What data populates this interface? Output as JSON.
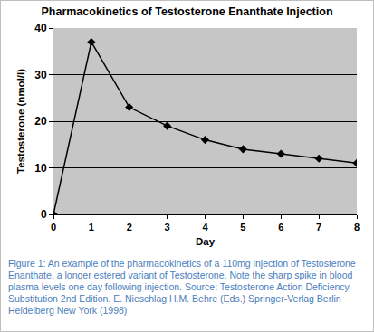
{
  "chart_data": {
    "type": "line",
    "title": "Pharmacokinetics of Testosterone Enanthate Injection",
    "x_label": "Day",
    "y_label": "Testosterone (nmol/l)",
    "x": [
      0,
      1,
      2,
      3,
      4,
      5,
      6,
      7,
      8
    ],
    "values": [
      0,
      37,
      23,
      19,
      16,
      14,
      13,
      12,
      11
    ],
    "color": "#000000",
    "marker": "diamond",
    "line_style": "solid",
    "xlim": [
      0,
      8
    ],
    "xticks": [
      0,
      1,
      2,
      3,
      4,
      5,
      6,
      7,
      8
    ],
    "ylim": [
      0,
      40
    ],
    "yticks": [
      0,
      10,
      20,
      30,
      40
    ],
    "grid": true,
    "caption": "Figure 1: An example of the pharmacokinetics of a 110mg injection of Testosterone Enanthate,  a longer estered variant of Testosterone.  Note the sharp spike in blood plasma levels one day following injection.  Source: Testosterone Action Deficiency Substitution 2nd Edition. E. Nieschlag H.M. Behre (Eds.) Springer-Verlag Berlin Heidelberg New York (1998)"
  }
}
